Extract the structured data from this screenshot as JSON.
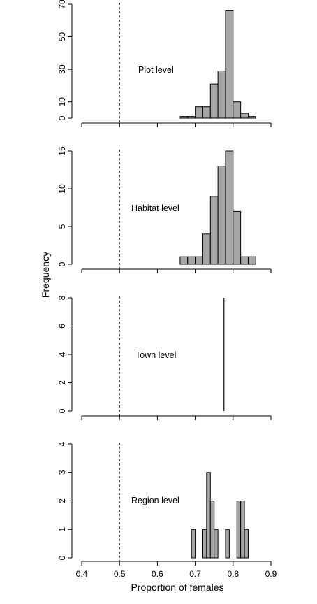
{
  "chart_data": {
    "type": "bar",
    "xlabel": "Proportion of females",
    "ylabel": "Frequency",
    "xlim": [
      0.4,
      0.9
    ],
    "x_ticks": [
      "0.4",
      "0.5",
      "0.6",
      "0.7",
      "0.8",
      "0.9"
    ],
    "reference_line_x": 0.5,
    "bar_color": "#a6a6a6",
    "panels": [
      {
        "label": "Plot level",
        "ylim": [
          0,
          70
        ],
        "y_ticks": [
          "0",
          "10",
          "30",
          "50",
          "70"
        ],
        "bin_width": 0.02,
        "bins": [
          {
            "x": 0.66,
            "count": 1
          },
          {
            "x": 0.68,
            "count": 1
          },
          {
            "x": 0.7,
            "count": 7
          },
          {
            "x": 0.72,
            "count": 7
          },
          {
            "x": 0.74,
            "count": 21
          },
          {
            "x": 0.76,
            "count": 29
          },
          {
            "x": 0.78,
            "count": 66
          },
          {
            "x": 0.8,
            "count": 10
          },
          {
            "x": 0.82,
            "count": 3
          },
          {
            "x": 0.84,
            "count": 1
          }
        ]
      },
      {
        "label": "Habitat level",
        "ylim": [
          0,
          15
        ],
        "y_ticks": [
          "0",
          "5",
          "10",
          "15"
        ],
        "bin_width": 0.02,
        "bins": [
          {
            "x": 0.66,
            "count": 1
          },
          {
            "x": 0.68,
            "count": 1
          },
          {
            "x": 0.7,
            "count": 1
          },
          {
            "x": 0.72,
            "count": 4
          },
          {
            "x": 0.74,
            "count": 9
          },
          {
            "x": 0.76,
            "count": 13
          },
          {
            "x": 0.78,
            "count": 15
          },
          {
            "x": 0.8,
            "count": 7
          },
          {
            "x": 0.82,
            "count": 1
          },
          {
            "x": 0.84,
            "count": 1
          }
        ]
      },
      {
        "label": "Town level",
        "ylim": [
          0,
          8
        ],
        "y_ticks": [
          "0",
          "2",
          "4",
          "6",
          "8"
        ],
        "bin_width": 0,
        "spike_x": 0.776,
        "spike_count": 8,
        "bins": []
      },
      {
        "label": "Region level",
        "ylim": [
          0,
          4
        ],
        "y_ticks": [
          "0",
          "1",
          "2",
          "3",
          "4"
        ],
        "bin_width": 0.01,
        "bins": [
          {
            "x": 0.69,
            "count": 1
          },
          {
            "x": 0.72,
            "count": 1
          },
          {
            "x": 0.73,
            "count": 3
          },
          {
            "x": 0.74,
            "count": 2
          },
          {
            "x": 0.75,
            "count": 1
          },
          {
            "x": 0.78,
            "count": 1
          },
          {
            "x": 0.81,
            "count": 2
          },
          {
            "x": 0.82,
            "count": 2
          },
          {
            "x": 0.83,
            "count": 1
          }
        ]
      }
    ]
  }
}
